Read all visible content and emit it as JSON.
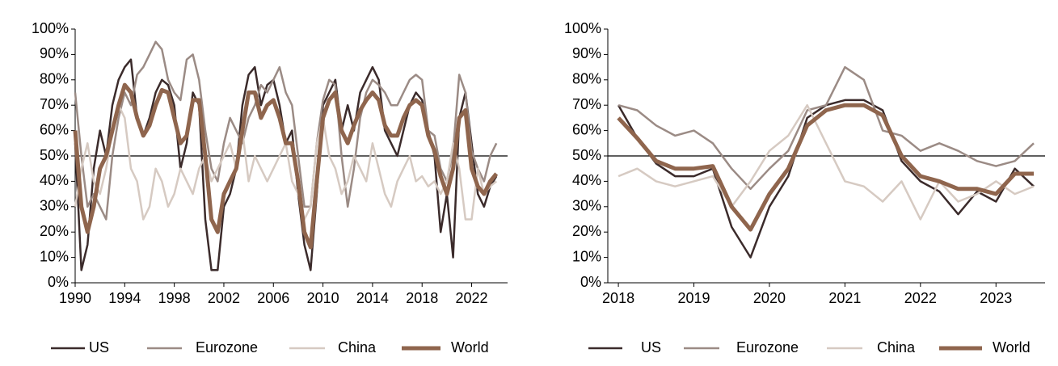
{
  "chart_data": [
    {
      "type": "line",
      "x": [
        1990,
        1990.5,
        1991,
        1991.5,
        1992,
        1992.5,
        1993,
        1993.5,
        1994,
        1994.5,
        1995,
        1995.5,
        1996,
        1996.5,
        1997,
        1997.5,
        1998,
        1998.5,
        1999,
        1999.5,
        2000,
        2000.5,
        2001,
        2001.5,
        2002,
        2002.5,
        2003,
        2003.5,
        2004,
        2004.5,
        2005,
        2005.5,
        2006,
        2006.5,
        2007,
        2007.5,
        2008,
        2008.5,
        2009,
        2009.5,
        2010,
        2010.5,
        2011,
        2011.5,
        2012,
        2012.5,
        2013,
        2013.5,
        2014,
        2014.5,
        2015,
        2015.5,
        2016,
        2016.5,
        2017,
        2017.5,
        2018,
        2018.5,
        2019,
        2019.5,
        2020,
        2020.5,
        2021,
        2021.5,
        2022,
        2022.5,
        2023,
        2023.5,
        2024
      ],
      "series": [
        {
          "name": "US",
          "color": "#3b2b2b",
          "width": 2.5,
          "values": [
            55,
            5,
            15,
            45,
            60,
            50,
            70,
            80,
            85,
            88,
            65,
            58,
            65,
            75,
            80,
            78,
            70,
            45,
            55,
            75,
            70,
            25,
            5,
            5,
            30,
            35,
            45,
            70,
            82,
            85,
            70,
            78,
            80,
            70,
            55,
            60,
            35,
            15,
            5,
            35,
            70,
            75,
            80,
            60,
            70,
            60,
            75,
            80,
            85,
            80,
            60,
            55,
            50,
            60,
            70,
            75,
            72,
            60,
            50,
            20,
            35,
            10,
            65,
            75,
            55,
            35,
            30,
            38,
            42
          ]
        },
        {
          "name": "Eurozone",
          "color": "#9b8b85",
          "width": 2.5,
          "values": [
            75,
            50,
            30,
            35,
            30,
            25,
            50,
            65,
            75,
            70,
            82,
            85,
            90,
            95,
            92,
            80,
            75,
            72,
            88,
            90,
            80,
            60,
            45,
            40,
            55,
            65,
            60,
            55,
            65,
            70,
            78,
            75,
            80,
            85,
            75,
            70,
            50,
            30,
            30,
            55,
            72,
            80,
            78,
            50,
            30,
            45,
            65,
            75,
            80,
            78,
            75,
            70,
            70,
            75,
            80,
            82,
            80,
            60,
            58,
            45,
            40,
            52,
            82,
            75,
            52,
            45,
            40,
            50,
            55
          ]
        },
        {
          "name": "China",
          "color": "#d6cac2",
          "width": 2.5,
          "values": [
            30,
            45,
            55,
            40,
            35,
            45,
            60,
            70,
            65,
            45,
            40,
            25,
            30,
            45,
            40,
            30,
            35,
            45,
            40,
            35,
            45,
            50,
            40,
            45,
            50,
            55,
            45,
            60,
            40,
            50,
            45,
            40,
            45,
            50,
            55,
            40,
            35,
            25,
            30,
            55,
            65,
            50,
            45,
            35,
            40,
            50,
            45,
            40,
            55,
            45,
            35,
            30,
            40,
            45,
            50,
            40,
            42,
            38,
            40,
            35,
            40,
            55,
            45,
            25,
            25,
            45,
            35,
            38,
            40
          ]
        },
        {
          "name": "World",
          "color": "#8f654d",
          "width": 5,
          "values": [
            60,
            30,
            20,
            30,
            45,
            50,
            60,
            70,
            78,
            75,
            65,
            58,
            62,
            70,
            76,
            75,
            65,
            55,
            58,
            72,
            72,
            50,
            25,
            20,
            35,
            40,
            45,
            60,
            75,
            75,
            65,
            70,
            72,
            65,
            55,
            55,
            40,
            20,
            14,
            40,
            65,
            72,
            75,
            60,
            55,
            62,
            68,
            72,
            75,
            72,
            62,
            58,
            58,
            65,
            70,
            72,
            70,
            58,
            52,
            42,
            35,
            45,
            65,
            68,
            45,
            38,
            35,
            40,
            43
          ]
        }
      ],
      "xlim": [
        1990,
        2024.9
      ],
      "xticks": [
        1990,
        1994,
        1998,
        2002,
        2006,
        2010,
        2014,
        2018,
        2022
      ],
      "ylim": [
        0,
        100
      ],
      "yticks": [
        {
          "value": 0,
          "label": "0%"
        },
        {
          "value": 10,
          "label": "10%"
        },
        {
          "value": 20,
          "label": "20%"
        },
        {
          "value": 30,
          "label": "30%"
        },
        {
          "value": 40,
          "label": "40%"
        },
        {
          "value": 50,
          "label": "50%"
        },
        {
          "value": 60,
          "label": "60%"
        },
        {
          "value": 70,
          "label": "70%"
        },
        {
          "value": 80,
          "label": "80%"
        },
        {
          "value": 90,
          "label": "90%"
        },
        {
          "value": 100,
          "label": "100%"
        }
      ],
      "reference_line": 50,
      "legend": "bottom"
    },
    {
      "type": "line",
      "x": [
        2018,
        2018.25,
        2018.5,
        2018.75,
        2019,
        2019.25,
        2019.5,
        2019.75,
        2020,
        2020.25,
        2020.5,
        2020.75,
        2021,
        2021.25,
        2021.5,
        2021.75,
        2022,
        2022.25,
        2022.5,
        2022.75,
        2023,
        2023.25,
        2023.5
      ],
      "series": [
        {
          "name": "US",
          "color": "#3b2b2b",
          "width": 2.5,
          "values": [
            70,
            57,
            47,
            42,
            42,
            45,
            22,
            10,
            30,
            42,
            65,
            70,
            72,
            72,
            68,
            48,
            40,
            36,
            27,
            36,
            32,
            45,
            38
          ]
        },
        {
          "name": "Eurozone",
          "color": "#9b8b85",
          "width": 2.5,
          "values": [
            70,
            68,
            62,
            58,
            60,
            55,
            45,
            37,
            45,
            52,
            68,
            70,
            85,
            80,
            60,
            58,
            52,
            55,
            52,
            48,
            46,
            48,
            55
          ]
        },
        {
          "name": "China",
          "color": "#d6cac2",
          "width": 2.5,
          "values": [
            42,
            45,
            40,
            38,
            40,
            42,
            30,
            40,
            52,
            58,
            70,
            55,
            40,
            38,
            32,
            40,
            25,
            40,
            32,
            35,
            40,
            35,
            38
          ]
        },
        {
          "name": "World",
          "color": "#8f654d",
          "width": 5,
          "values": [
            65,
            57,
            48,
            45,
            45,
            46,
            30,
            21,
            35,
            45,
            62,
            68,
            70,
            70,
            66,
            50,
            42,
            40,
            37,
            37,
            35,
            43,
            43
          ]
        }
      ],
      "xlim": [
        2017.86,
        2023.65
      ],
      "xticks": [
        2018,
        2019,
        2020,
        2021,
        2022,
        2023
      ],
      "ylim": [
        0,
        100
      ],
      "yticks": [
        {
          "value": 0,
          "label": "0%"
        },
        {
          "value": 10,
          "label": "10%"
        },
        {
          "value": 20,
          "label": "20%"
        },
        {
          "value": 30,
          "label": "30%"
        },
        {
          "value": 40,
          "label": "40%"
        },
        {
          "value": 50,
          "label": "50%"
        },
        {
          "value": 60,
          "label": "60%"
        },
        {
          "value": 70,
          "label": "70%"
        },
        {
          "value": 80,
          "label": "80%"
        },
        {
          "value": 90,
          "label": "90%"
        },
        {
          "value": 100,
          "label": "100%"
        }
      ],
      "reference_line": 50,
      "legend": "bottom"
    }
  ]
}
